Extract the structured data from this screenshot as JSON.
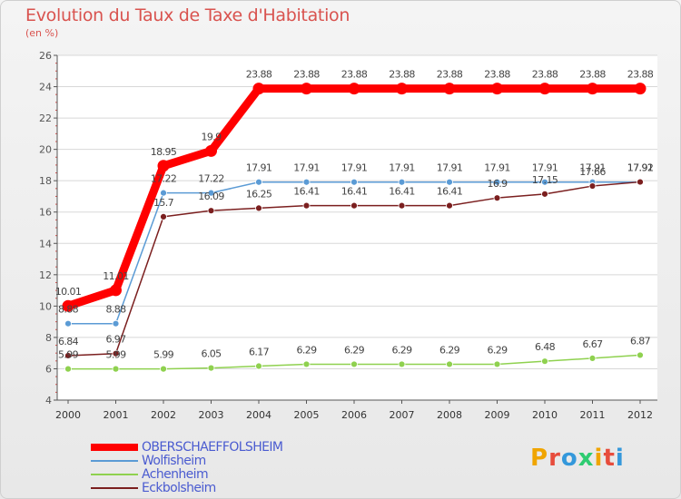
{
  "title": "Evolution du Taux de Taxe d'Habitation",
  "subtitle": "(en %)",
  "brand": "Proxiti",
  "chart_data": {
    "type": "line",
    "title": "Evolution du Taux de Taxe d'Habitation",
    "ylabel": "(en %)",
    "xlabel": "",
    "ylim": [
      4,
      26
    ],
    "yticks": [
      4,
      6,
      8,
      10,
      12,
      14,
      16,
      18,
      20,
      22,
      24,
      26
    ],
    "categories": [
      "2000",
      "2001",
      "2002",
      "2003",
      "2004",
      "2005",
      "2006",
      "2007",
      "2008",
      "2009",
      "2010",
      "2011",
      "2012"
    ],
    "grid": true,
    "series": [
      {
        "name": "OBERSCHAEFFOLSHEIM",
        "color": "#ff0000",
        "highlight": true,
        "values": [
          10.01,
          11.01,
          18.95,
          19.9,
          23.88,
          23.88,
          23.88,
          23.88,
          23.88,
          23.88,
          23.88,
          23.88,
          23.88
        ],
        "labels": [
          "10.01",
          "11.01",
          "18.95",
          "19.9",
          "23.88",
          "23.88",
          "23.88",
          "23.88",
          "23.88",
          "23.88",
          "23.88",
          "23.88",
          "23.88"
        ]
      },
      {
        "name": "Wolfisheim",
        "color": "#5b9bd5",
        "highlight": false,
        "values": [
          8.88,
          8.88,
          17.22,
          17.22,
          17.91,
          17.91,
          17.91,
          17.91,
          17.91,
          17.91,
          17.91,
          17.91,
          17.91
        ],
        "labels": [
          "8.88",
          "8.88",
          "17.22",
          "17.22",
          "17.91",
          "17.91",
          "17.91",
          "17.91",
          "17.91",
          "17.91",
          "17.91",
          "17.91",
          "17.91"
        ]
      },
      {
        "name": "Achenheim",
        "color": "#8fd14f",
        "highlight": false,
        "values": [
          5.99,
          5.99,
          5.99,
          6.05,
          6.17,
          6.29,
          6.29,
          6.29,
          6.29,
          6.29,
          6.48,
          6.67,
          6.87
        ],
        "labels": [
          "5.99",
          "5.99",
          "5.99",
          "6.05",
          "6.17",
          "6.29",
          "6.29",
          "6.29",
          "6.29",
          "6.29",
          "6.48",
          "6.67",
          "6.87"
        ]
      },
      {
        "name": "Eckbolsheim",
        "color": "#7b1f1f",
        "highlight": false,
        "values": [
          6.84,
          6.97,
          15.7,
          16.09,
          16.25,
          16.41,
          16.41,
          16.41,
          16.41,
          16.9,
          17.15,
          17.66,
          17.92
        ],
        "labels": [
          "6.84",
          "6.97",
          "15.7",
          "16.09",
          "16.25",
          "16.41",
          "16.41",
          "16.41",
          "16.41",
          "16.9",
          "17.15",
          "17.66",
          "17.92"
        ]
      }
    ]
  }
}
